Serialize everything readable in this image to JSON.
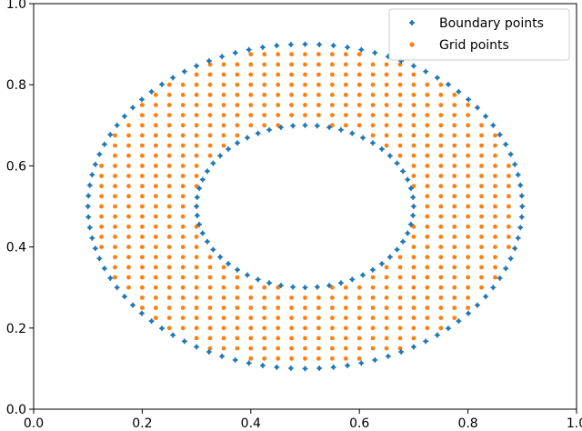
{
  "chart_data": {
    "type": "scatter",
    "xlim": [
      0.0,
      1.0
    ],
    "ylim": [
      0.0,
      1.0
    ],
    "x_ticks": [
      "0.0",
      "0.2",
      "0.4",
      "0.6",
      "0.8",
      "1.0"
    ],
    "y_ticks": [
      "0.0",
      "0.2",
      "0.4",
      "0.6",
      "0.8",
      "1.0"
    ],
    "grid": false,
    "legend_position": "top-right",
    "series": [
      {
        "name": "Boundary points",
        "color": "#1f77b4",
        "shape": "ellipse-annulus-boundary",
        "center": [
          0.5,
          0.5
        ],
        "outer_radii": [
          0.4,
          0.4
        ],
        "inner_radii": [
          0.2,
          0.2
        ],
        "outer_count": 96,
        "inner_count": 56
      },
      {
        "name": "Grid points",
        "color": "#ff7f0e",
        "shape": "grid-within-annulus",
        "spacing": 0.025,
        "center": [
          0.5,
          0.5
        ],
        "outer_radii": [
          0.4,
          0.4
        ],
        "inner_radii": [
          0.2,
          0.2
        ]
      }
    ]
  }
}
